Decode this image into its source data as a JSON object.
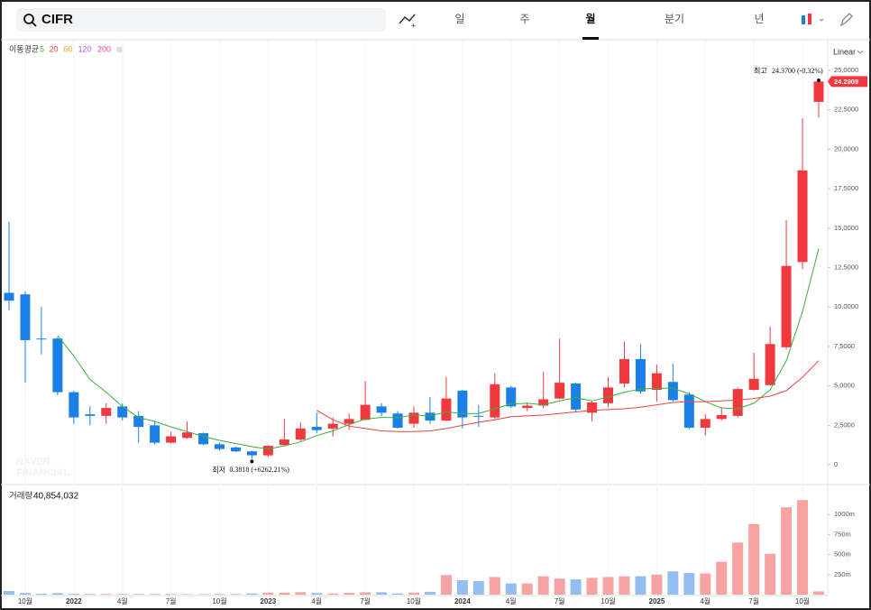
{
  "toolbar": {
    "search": "CIFR",
    "tabs": [
      "일",
      "주",
      "월",
      "분기",
      "년"
    ],
    "active_tab": 2
  },
  "chart_data": {
    "type": "candlestick",
    "scale": "Linear",
    "legend_title": "이동평균",
    "categories": [
      null,
      "10월",
      null,
      null,
      "2022",
      null,
      null,
      "4월",
      null,
      null,
      "7월",
      null,
      null,
      "10월",
      null,
      null,
      "2023",
      null,
      null,
      "4월",
      null,
      null,
      "7월",
      null,
      null,
      "10월",
      null,
      null,
      "2024",
      null,
      null,
      "4월",
      null,
      null,
      "7월",
      null,
      null,
      "10월",
      null,
      null,
      "2025",
      null,
      null,
      "4월",
      null,
      null,
      "7월",
      null,
      null,
      "10월",
      null
    ],
    "open": [
      10.9,
      10.8,
      8.0,
      8.0,
      4.6,
      3.2,
      3.1,
      3.7,
      3.1,
      2.5,
      1.4,
      1.7,
      2.0,
      1.3,
      1.1,
      0.85,
      0.6,
      1.25,
      1.6,
      2.4,
      2.3,
      2.6,
      2.85,
      3.7,
      3.25,
      2.6,
      3.3,
      2.8,
      4.7,
      3.1,
      3.0,
      4.9,
      3.6,
      3.75,
      4.2,
      5.15,
      3.3,
      3.9,
      5.15,
      6.7,
      4.75,
      5.25,
      4.45,
      2.35,
      2.9,
      3.1,
      4.75,
      5.05,
      7.45,
      12.85,
      23.0
    ],
    "high": [
      15.4,
      11.0,
      10.0,
      8.1,
      4.7,
      3.7,
      3.9,
      3.9,
      3.4,
      2.8,
      2.1,
      2.75,
      2.05,
      1.4,
      1.15,
      0.9,
      1.25,
      2.9,
      2.7,
      3.3,
      3.0,
      3.25,
      5.3,
      3.9,
      3.4,
      3.7,
      4.3,
      5.55,
      4.75,
      3.8,
      5.8,
      5.0,
      3.95,
      5.9,
      8.0,
      5.2,
      4.05,
      5.55,
      7.8,
      7.65,
      6.35,
      6.4,
      4.6,
      3.2,
      3.65,
      4.9,
      7.1,
      8.75,
      15.5,
      21.95,
      24.37
    ],
    "low": [
      9.8,
      5.2,
      7.0,
      4.4,
      2.6,
      2.5,
      2.6,
      2.8,
      1.4,
      1.3,
      1.35,
      1.65,
      1.25,
      0.9,
      0.8,
      0.3818,
      0.5,
      1.2,
      1.5,
      2.0,
      1.8,
      2.2,
      2.8,
      3.1,
      2.3,
      2.35,
      2.6,
      2.75,
      2.3,
      2.4,
      2.9,
      3.6,
      3.4,
      3.6,
      4.15,
      3.3,
      2.75,
      3.65,
      4.9,
      4.5,
      4.0,
      4.0,
      2.25,
      1.85,
      2.8,
      3.0,
      4.7,
      5.0,
      7.3,
      12.4,
      22.0
    ],
    "close": [
      10.4,
      7.9,
      7.95,
      4.6,
      3.0,
      3.1,
      3.6,
      3.0,
      2.4,
      1.4,
      1.8,
      2.05,
      1.3,
      1.0,
      0.85,
      0.6,
      1.2,
      1.6,
      2.3,
      2.2,
      2.6,
      2.9,
      3.8,
      3.3,
      2.35,
      3.3,
      2.8,
      4.2,
      3.0,
      3.05,
      5.1,
      3.7,
      3.75,
      4.15,
      5.2,
      3.5,
      3.95,
      4.9,
      6.7,
      4.65,
      5.8,
      4.1,
      2.35,
      2.9,
      3.15,
      4.8,
      5.45,
      7.65,
      12.6,
      18.65,
      24.2909
    ],
    "up_color": "#f0383e",
    "down_color": "#1a80e6",
    "series": [
      {
        "name": "5",
        "color": "#3fae3f",
        "values": [
          null,
          null,
          null,
          8.2,
          6.9,
          5.4,
          4.6,
          3.7,
          3.0,
          2.75,
          2.4,
          2.1,
          1.8,
          1.55,
          1.35,
          1.15,
          1.0,
          1.2,
          1.45,
          1.85,
          2.15,
          2.55,
          2.9,
          3.0,
          3.0,
          3.15,
          3.1,
          3.35,
          3.25,
          3.25,
          3.55,
          3.85,
          3.9,
          3.8,
          4.05,
          4.25,
          4.05,
          4.3,
          4.6,
          4.8,
          4.85,
          4.85,
          4.5,
          4.0,
          3.6,
          3.55,
          3.9,
          4.75,
          6.6,
          9.7,
          13.7
        ]
      },
      {
        "name": "20",
        "color": "#e8453c",
        "values": [
          null,
          null,
          null,
          null,
          null,
          null,
          null,
          null,
          null,
          null,
          null,
          null,
          null,
          null,
          null,
          null,
          null,
          null,
          null,
          3.45,
          2.85,
          2.45,
          2.3,
          2.15,
          2.1,
          2.1,
          2.15,
          2.3,
          2.5,
          2.7,
          2.85,
          3.05,
          3.1,
          3.15,
          3.25,
          3.35,
          3.45,
          3.5,
          3.55,
          3.65,
          3.8,
          3.95,
          4.0,
          4.0,
          4.05,
          4.1,
          4.2,
          4.35,
          4.7,
          5.55,
          6.6
        ]
      },
      {
        "name": "60",
        "color": "#f0a020"
      },
      {
        "name": "120",
        "color": "#a35ee8"
      },
      {
        "name": "200",
        "color": "#e8449a"
      }
    ],
    "ylim": [
      -1.14,
      26.77
    ],
    "yticks": [
      0,
      {
        "value": 2.5,
        "label": "2,5000"
      },
      {
        "value": 5,
        "label": "5,0000"
      },
      {
        "value": 7.5,
        "label": "7,5000"
      },
      {
        "value": 10,
        "label": "10,0000"
      },
      {
        "value": 12.5,
        "label": "12,5000"
      },
      {
        "value": 15,
        "label": "15,0000"
      },
      {
        "value": 17.5,
        "label": "17,5000"
      },
      {
        "value": 20,
        "label": "20,0000"
      },
      {
        "value": 22.5,
        "label": "22,5000"
      },
      {
        "value": 25,
        "label": "25,0000"
      }
    ],
    "high_annotation": {
      "label": "최고",
      "text": "24.3700 (-0.32%)"
    },
    "low_annotation": {
      "label": "최저",
      "text": "0.3818 (+6262.21%)"
    },
    "watermark": [
      "NAVER",
      "FINANCIAL"
    ],
    "volume": {
      "name": "거래량",
      "last_label": "40,854,032",
      "up_color": "#f7a3a3",
      "down_color": "#94bef2",
      "values": [
        45,
        20,
        12,
        20,
        10,
        8,
        8,
        8,
        8,
        8,
        8,
        6,
        6,
        8,
        8,
        15,
        25,
        25,
        30,
        20,
        15,
        22,
        30,
        30,
        15,
        25,
        35,
        245,
        180,
        170,
        220,
        140,
        140,
        230,
        200,
        190,
        210,
        220,
        230,
        230,
        250,
        290,
        270,
        265,
        410,
        650,
        880,
        510,
        1090,
        1180,
        40.854032
      ],
      "ylim": [
        0,
        1340
      ],
      "yticks": [
        {
          "value": 250,
          "label": "250m"
        },
        {
          "value": 500,
          "label": "500m"
        },
        {
          "value": 750,
          "label": "750m"
        },
        {
          "value": 1000,
          "label": "1000m"
        }
      ]
    }
  }
}
